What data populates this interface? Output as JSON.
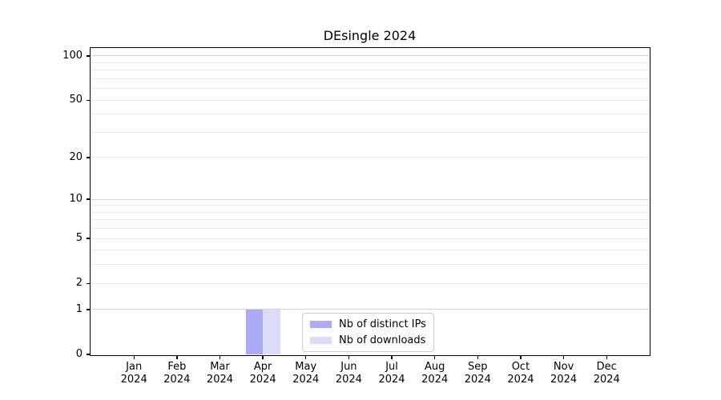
{
  "chart_data": {
    "type": "bar",
    "title": "DEsingle 2024",
    "categories": [
      "Jan",
      "Feb",
      "Mar",
      "Apr",
      "May",
      "Jun",
      "Jul",
      "Aug",
      "Sep",
      "Oct",
      "Nov",
      "Dec"
    ],
    "category_subline": "2024",
    "series": [
      {
        "name": "Nb of distinct IPs",
        "color": "#aaaaf5",
        "values": [
          0,
          0,
          0,
          1,
          0,
          0,
          0,
          0,
          0,
          0,
          0,
          0
        ]
      },
      {
        "name": "Nb of downloads",
        "color": "#dcdcf8",
        "values": [
          0,
          0,
          0,
          1,
          0,
          0,
          0,
          0,
          0,
          0,
          0,
          0
        ]
      }
    ],
    "xlabel": "",
    "ylabel": "",
    "yscale": "log1p",
    "yticks": [
      0,
      1,
      2,
      5,
      10,
      20,
      50,
      100
    ],
    "major_gridlines": [
      1,
      10,
      100
    ],
    "minor_gridlines": [
      2,
      3,
      4,
      5,
      6,
      7,
      8,
      9,
      20,
      30,
      40,
      50,
      60,
      70,
      80,
      90
    ],
    "ylim": [
      0,
      113
    ],
    "grid": "horizontal",
    "legend_position": "lower center",
    "legend_entries": [
      "Nb of distinct IPs",
      "Nb of downloads"
    ]
  }
}
